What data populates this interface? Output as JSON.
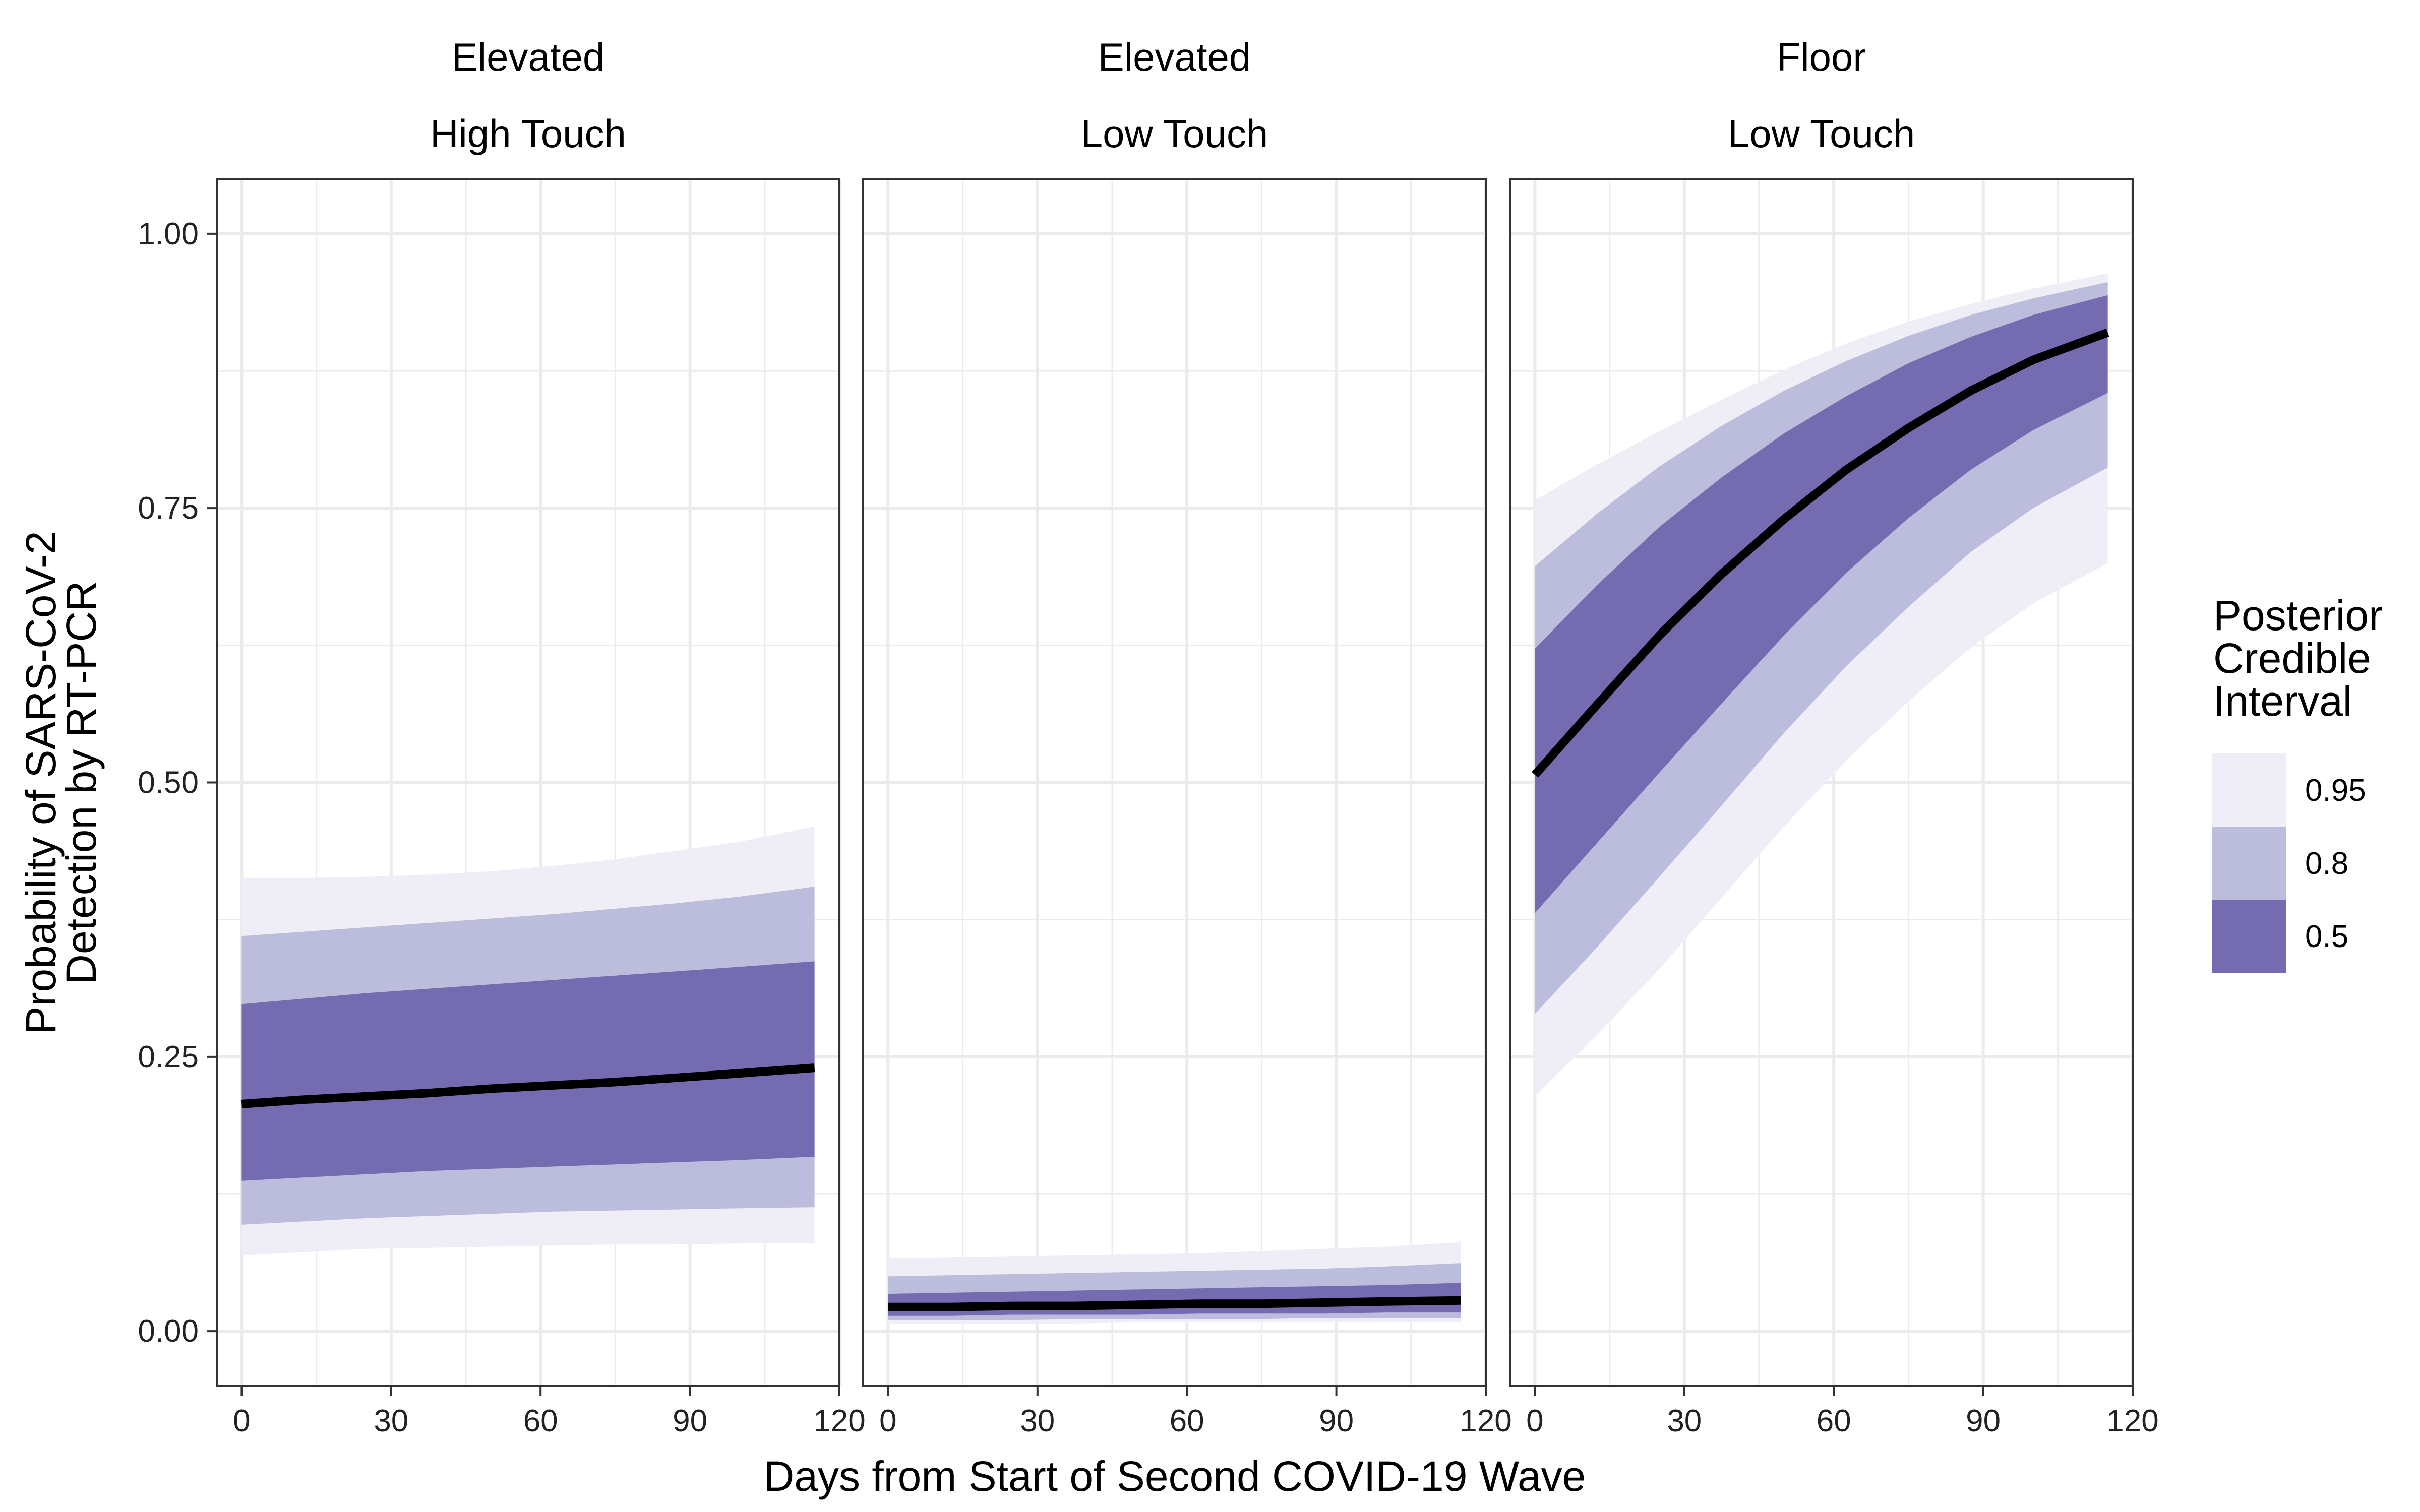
{
  "chart_data": {
    "type": "area",
    "xlabel": "Days from Start of Second COVID-19 Wave",
    "ylabel_lines": [
      "Probability of SARS-CoV-2",
      "Detection by RT-PCR"
    ],
    "xlim": [
      -5,
      120
    ],
    "ylim": [
      -0.05,
      1.05
    ],
    "x_ticks": [
      0,
      30,
      60,
      90,
      120
    ],
    "y_ticks": [
      0,
      0.25,
      0.5,
      0.75,
      1.0
    ],
    "y_tick_labels": [
      "0.00",
      "0.25",
      "0.50",
      "0.75",
      "1.00"
    ],
    "grid": true,
    "legend": {
      "title_lines": [
        "Posterior",
        "Credible",
        "Interval"
      ],
      "placement": "right",
      "items": [
        {
          "label": "0.95",
          "color": "#efedf5"
        },
        {
          "label": "0.8",
          "color": "#bcbddc"
        },
        {
          "label": "0.5",
          "color": "#756bb1"
        }
      ]
    },
    "colors": {
      "ci95": "#efedf5",
      "ci80": "#bcbddc",
      "ci50": "#756bb1",
      "median": "#000000",
      "grid": "#ebebeb"
    },
    "panels": [
      {
        "strip_lines": [
          "Elevated",
          "High Touch"
        ],
        "x": [
          0,
          12.5,
          25,
          37.5,
          50,
          62.5,
          75,
          87.5,
          100,
          115
        ],
        "median": [
          0.207,
          0.211,
          0.214,
          0.217,
          0.221,
          0.224,
          0.227,
          0.231,
          0.235,
          0.24
        ],
        "ci50": {
          "lower": [
            0.137,
            0.14,
            0.143,
            0.146,
            0.148,
            0.15,
            0.152,
            0.154,
            0.156,
            0.159
          ],
          "upper": [
            0.298,
            0.303,
            0.308,
            0.312,
            0.316,
            0.32,
            0.324,
            0.328,
            0.332,
            0.337
          ]
        },
        "ci80": {
          "lower": [
            0.097,
            0.1,
            0.103,
            0.105,
            0.107,
            0.109,
            0.11,
            0.111,
            0.112,
            0.113
          ],
          "upper": [
            0.36,
            0.364,
            0.368,
            0.372,
            0.376,
            0.38,
            0.385,
            0.39,
            0.396,
            0.405
          ]
        },
        "ci95": {
          "lower": [
            0.069,
            0.072,
            0.075,
            0.076,
            0.077,
            0.078,
            0.079,
            0.079,
            0.08,
            0.08
          ],
          "upper": [
            0.413,
            0.413,
            0.414,
            0.416,
            0.419,
            0.424,
            0.43,
            0.438,
            0.446,
            0.46
          ]
        }
      },
      {
        "strip_lines": [
          "Elevated",
          "Low Touch"
        ],
        "x": [
          0,
          12.5,
          25,
          37.5,
          50,
          62.5,
          75,
          87.5,
          100,
          115
        ],
        "median": [
          0.022,
          0.022,
          0.023,
          0.023,
          0.024,
          0.025,
          0.025,
          0.026,
          0.027,
          0.028
        ],
        "ci50": {
          "lower": [
            0.014,
            0.014,
            0.015,
            0.015,
            0.015,
            0.016,
            0.016,
            0.016,
            0.017,
            0.017
          ],
          "upper": [
            0.034,
            0.035,
            0.036,
            0.037,
            0.038,
            0.039,
            0.04,
            0.041,
            0.042,
            0.044
          ]
        },
        "ci80": {
          "lower": [
            0.01,
            0.01,
            0.01,
            0.011,
            0.011,
            0.011,
            0.011,
            0.012,
            0.012,
            0.012
          ],
          "upper": [
            0.05,
            0.051,
            0.052,
            0.053,
            0.054,
            0.055,
            0.056,
            0.057,
            0.059,
            0.062
          ]
        },
        "ci95": {
          "lower": [
            0.007,
            0.007,
            0.007,
            0.007,
            0.008,
            0.008,
            0.008,
            0.008,
            0.008,
            0.008
          ],
          "upper": [
            0.066,
            0.067,
            0.068,
            0.069,
            0.07,
            0.071,
            0.073,
            0.075,
            0.077,
            0.081
          ]
        }
      },
      {
        "strip_lines": [
          "Floor",
          "Low Touch"
        ],
        "x": [
          0,
          12.5,
          25,
          37.5,
          50,
          62.5,
          75,
          87.5,
          100,
          115
        ],
        "median": [
          0.507,
          0.571,
          0.634,
          0.69,
          0.74,
          0.785,
          0.823,
          0.857,
          0.885,
          0.91
        ],
        "ci50": {
          "lower": [
            0.381,
            0.445,
            0.509,
            0.572,
            0.634,
            0.691,
            0.741,
            0.785,
            0.821,
            0.855
          ],
          "upper": [
            0.622,
            0.68,
            0.733,
            0.778,
            0.818,
            0.852,
            0.882,
            0.906,
            0.926,
            0.944
          ]
        },
        "ci80": {
          "lower": [
            0.289,
            0.35,
            0.414,
            0.479,
            0.545,
            0.606,
            0.66,
            0.71,
            0.75,
            0.787
          ],
          "upper": [
            0.697,
            0.745,
            0.788,
            0.825,
            0.857,
            0.884,
            0.907,
            0.926,
            0.941,
            0.956
          ]
        },
        "ci95": {
          "lower": [
            0.214,
            0.27,
            0.33,
            0.395,
            0.46,
            0.52,
            0.574,
            0.623,
            0.663,
            0.7
          ],
          "upper": [
            0.757,
            0.79,
            0.82,
            0.849,
            0.876,
            0.9,
            0.92,
            0.936,
            0.95,
            0.964
          ]
        }
      }
    ]
  }
}
